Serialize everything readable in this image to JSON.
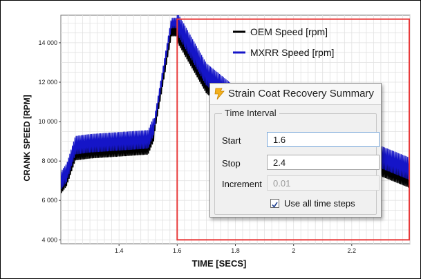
{
  "chart_data": {
    "type": "line",
    "xlabel": "TIME [SECS]",
    "ylabel": "CRANK SPEED [RPM]",
    "xlim": [
      1.2,
      2.4
    ],
    "ylim": [
      3800,
      15400
    ],
    "x_ticks": [
      1.4,
      1.6,
      1.8,
      2,
      2.2
    ],
    "x_tick_labels": [
      "1.4",
      "1.6",
      "1.8",
      "2",
      "2.2"
    ],
    "y_ticks": [
      4000,
      6000,
      8000,
      10000,
      12000,
      14000
    ],
    "y_tick_labels": [
      "4 000",
      "6 000",
      "8 000",
      "10 000",
      "12 000",
      "14 000"
    ],
    "grid": true,
    "legend_position": "top-right",
    "series": [
      {
        "name": "OEM Speed [rpm]",
        "color": "#000000",
        "x": [
          1.2,
          1.22,
          1.25,
          1.3,
          1.4,
          1.5,
          1.52,
          1.58,
          1.6,
          1.7,
          1.8,
          1.9,
          2.0,
          2.1,
          2.2,
          2.3,
          2.4
        ],
        "y": [
          6800,
          7200,
          8500,
          8600,
          8700,
          8800,
          9500,
          14600,
          14600,
          12000,
          10800,
          10000,
          9300,
          8800,
          8300,
          7800,
          7200
        ]
      },
      {
        "name": "MXRR Speed [rpm]",
        "color": "#1515c8",
        "x": [
          1.2,
          1.22,
          1.25,
          1.3,
          1.4,
          1.5,
          1.52,
          1.58,
          1.6,
          1.7,
          1.8,
          1.9,
          2.0,
          2.1,
          2.2,
          2.3,
          2.4
        ],
        "y": [
          7000,
          7400,
          8800,
          8900,
          9000,
          9100,
          9800,
          15000,
          15000,
          12400,
          11200,
          10400,
          9700,
          9200,
          8700,
          8200,
          7600
        ]
      }
    ],
    "annotation_box": {
      "x": [
        1.6,
        2.4
      ],
      "y": [
        4000,
        15200
      ],
      "color": "#e83a3a"
    }
  },
  "dialog": {
    "title": "Strain Coat Recovery Summary",
    "group_title": "Time Interval",
    "start_label": "Start",
    "start_value": "1.6",
    "stop_label": "Stop",
    "stop_value": "2.4",
    "increment_label": "Increment",
    "increment_value": "0.01",
    "use_all_label": "Use all time steps",
    "use_all_checked": true
  }
}
